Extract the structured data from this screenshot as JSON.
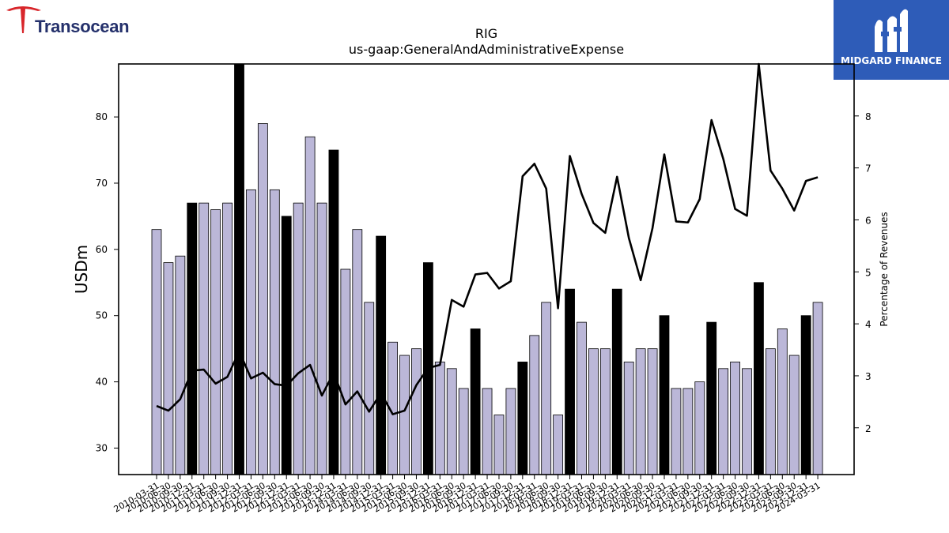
{
  "logo": {
    "company": "Transocean",
    "brand_color": "#24306b",
    "accent_color": "#d8262b"
  },
  "badge": {
    "text": "MIDGARD FINANCE",
    "background": "#2e5cb8"
  },
  "chart_data": {
    "type": "bar",
    "title": "RIG",
    "subtitle": "us-gaap:GeneralAndAdministrativeExpense",
    "ylabel": "USDm",
    "y2label": "Percentage of Revenues",
    "ylim": [
      26,
      88
    ],
    "y2lim": [
      1.1,
      9.0
    ],
    "yticks": [
      30,
      40,
      50,
      60,
      70,
      80
    ],
    "y2ticks": [
      2,
      3,
      4,
      5,
      6,
      7,
      8
    ],
    "categories": [
      "2010-03-31",
      "2010-06-30",
      "2010-09-30",
      "2010-12-31",
      "2011-03-31",
      "2011-06-30",
      "2011-09-30",
      "2011-12-31",
      "2012-03-31",
      "2012-06-30",
      "2012-09-30",
      "2012-12-31",
      "2013-03-31",
      "2013-06-30",
      "2013-09-30",
      "2013-12-31",
      "2014-03-31",
      "2014-06-30",
      "2014-09-30",
      "2014-12-31",
      "2015-03-31",
      "2015-06-30",
      "2015-09-30",
      "2015-12-31",
      "2016-03-31",
      "2016-06-30",
      "2016-09-30",
      "2016-12-31",
      "2017-03-31",
      "2017-06-30",
      "2017-09-30",
      "2017-12-31",
      "2018-03-31",
      "2018-06-30",
      "2018-09-30",
      "2018-12-31",
      "2019-03-31",
      "2019-06-30",
      "2019-09-30",
      "2019-12-31",
      "2020-03-31",
      "2020-06-30",
      "2020-09-30",
      "2020-12-31",
      "2021-03-31",
      "2021-06-30",
      "2021-09-30",
      "2021-12-31",
      "2022-03-31",
      "2022-06-30",
      "2022-09-30",
      "2022-12-31",
      "2023-03-31",
      "2023-06-30",
      "2023-09-30",
      "2023-12-31",
      "2024-03-31"
    ],
    "series": [
      {
        "type": "bar",
        "values": [
          63,
          58,
          59,
          67,
          67,
          66,
          67,
          88,
          69,
          79,
          69,
          65,
          67,
          77,
          67,
          75,
          57,
          63,
          52,
          62,
          46,
          44,
          45,
          58,
          43,
          42,
          39,
          48,
          39,
          35,
          39,
          43,
          47,
          52,
          35,
          54,
          49,
          45,
          45,
          54,
          43,
          45,
          45,
          50,
          39,
          39,
          40,
          49,
          42,
          43,
          42,
          55,
          45,
          48,
          44,
          50,
          52
        ],
        "highlight": [
          false,
          false,
          false,
          true,
          false,
          false,
          false,
          true,
          false,
          false,
          false,
          true,
          false,
          false,
          false,
          true,
          false,
          false,
          false,
          true,
          false,
          false,
          false,
          true,
          false,
          false,
          false,
          true,
          false,
          false,
          false,
          true,
          false,
          false,
          false,
          true,
          false,
          false,
          false,
          true,
          false,
          false,
          false,
          true,
          false,
          false,
          false,
          true,
          false,
          false,
          false,
          true,
          false,
          false,
          false,
          true,
          false
        ],
        "color": "#bbb7d8",
        "highlight_color": "#000000"
      },
      {
        "type": "line",
        "axis": "right",
        "color": "#000000",
        "values": [
          2.42,
          2.33,
          2.55,
          3.1,
          3.12,
          2.85,
          2.98,
          3.47,
          2.95,
          3.06,
          2.84,
          2.81,
          3.05,
          3.21,
          2.62,
          3.06,
          2.45,
          2.7,
          2.31,
          2.67,
          2.26,
          2.33,
          2.82,
          3.15,
          3.21,
          4.46,
          4.33,
          4.95,
          4.98,
          4.68,
          4.82,
          6.84,
          7.08,
          6.6,
          4.3,
          7.23,
          6.5,
          5.94,
          5.75,
          6.83,
          5.65,
          4.84,
          5.84,
          7.26,
          5.97,
          5.95,
          6.4,
          7.92,
          7.17,
          6.21,
          6.08,
          9.0,
          6.95,
          6.6,
          6.18,
          6.75,
          6.82
        ]
      }
    ],
    "grid": false,
    "legend": "none"
  }
}
